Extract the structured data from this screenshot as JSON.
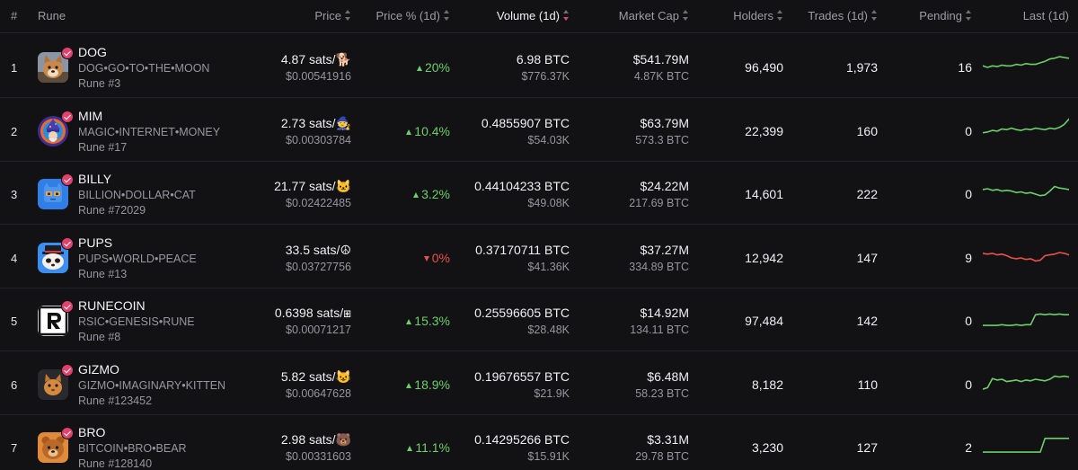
{
  "colors": {
    "background": "#121214",
    "up": "#6ccf6a",
    "down": "#e8514a",
    "accent": "#e0426d",
    "muted": "#9696a0"
  },
  "header": {
    "index": "#",
    "rune": "Rune",
    "price": "Price",
    "price_pct": "Price % (1d)",
    "volume": "Volume (1d)",
    "market_cap": "Market Cap",
    "holders": "Holders",
    "trades": "Trades (1d)",
    "pending": "Pending",
    "last": "Last (1d)",
    "sorted_column": "volume",
    "sort_direction": "desc"
  },
  "rows": [
    {
      "index": "1",
      "name": "DOG",
      "full_name": "DOG•GO•TO•THE•MOON",
      "rune_number": "Rune #3",
      "price": "4.87 sats/🐕",
      "price_usd": "$0.00541916",
      "change": "20%",
      "direction": "up",
      "volume": "6.98 BTC",
      "volume_usd": "$776.37K",
      "market_cap": "$541.79M",
      "market_cap_btc": "4.87K BTC",
      "holders": "96,490",
      "trades": "1,973",
      "pending": "16",
      "avatar_icon": "shiba-dog-icon",
      "trend": [
        22,
        20,
        22,
        21,
        23,
        22,
        22,
        24,
        23,
        25,
        24,
        24,
        26,
        28,
        31,
        32,
        34,
        33,
        32
      ]
    },
    {
      "index": "2",
      "name": "MIM",
      "full_name": "MAGIC•INTERNET•MONEY",
      "rune_number": "Rune #17",
      "price": "2.73 sats/🧙",
      "price_usd": "$0.00303784",
      "change": "10.4%",
      "direction": "up",
      "volume": "0.4855907 BTC",
      "volume_usd": "$54.03K",
      "market_cap": "$63.79M",
      "market_cap_btc": "573.3 BTC",
      "holders": "22,399",
      "trades": "160",
      "pending": "0",
      "avatar_icon": "wizard-icon",
      "trend": [
        18,
        19,
        21,
        20,
        23,
        22,
        24,
        22,
        21,
        23,
        22,
        24,
        23,
        22,
        24,
        23,
        25,
        29,
        36
      ]
    },
    {
      "index": "3",
      "name": "BILLY",
      "full_name": "BILLION•DOLLAR•CAT",
      "rune_number": "Rune #72029",
      "price": "21.77 sats/🐱",
      "price_usd": "$0.02422485",
      "change": "3.2%",
      "direction": "up",
      "volume": "0.44104233 BTC",
      "volume_usd": "$49.08K",
      "market_cap": "$24.22M",
      "market_cap_btc": "217.69 BTC",
      "holders": "14,601",
      "trades": "222",
      "pending": "0",
      "avatar_icon": "cat-icon",
      "trend": [
        26,
        27,
        25,
        26,
        24,
        25,
        24,
        22,
        23,
        21,
        22,
        20,
        18,
        19,
        24,
        30,
        28,
        27,
        26
      ]
    },
    {
      "index": "4",
      "name": "PUPS",
      "full_name": "PUPS•WORLD•PEACE",
      "rune_number": "Rune #13",
      "price": "33.5 sats/☮",
      "price_usd": "$0.03727756",
      "change": "0%",
      "direction": "down",
      "volume": "0.37170711 BTC",
      "volume_usd": "$41.36K",
      "market_cap": "$37.27M",
      "market_cap_btc": "334.89 BTC",
      "holders": "12,942",
      "trades": "147",
      "pending": "9",
      "avatar_icon": "pup-face-icon",
      "trend": [
        26,
        25,
        26,
        24,
        25,
        23,
        20,
        19,
        20,
        18,
        19,
        16,
        17,
        23,
        24,
        25,
        27,
        26,
        24
      ]
    },
    {
      "index": "5",
      "name": "RUNECOIN",
      "full_name": "RSIC•GENESIS•RUNE",
      "rune_number": "Rune #8",
      "price": "0.6398 sats/⧆",
      "price_usd": "$0.00071217",
      "change": "15.3%",
      "direction": "up",
      "volume": "0.25596605 BTC",
      "volume_usd": "$28.48K",
      "market_cap": "$14.92M",
      "market_cap_btc": "134.11 BTC",
      "holders": "97,484",
      "trades": "142",
      "pending": "0",
      "avatar_icon": "runecoin-logo-icon",
      "trend": [
        14,
        14,
        14,
        14,
        15,
        14,
        14,
        15,
        14,
        15,
        15,
        28,
        29,
        28,
        29,
        28,
        29,
        28,
        28
      ]
    },
    {
      "index": "6",
      "name": "GIZMO",
      "full_name": "GIZMO•IMAGINARY•KITTEN",
      "rune_number": "Rune #123452",
      "price": "5.82 sats/😺",
      "price_usd": "$0.00647628",
      "change": "18.9%",
      "direction": "up",
      "volume": "0.19676557 BTC",
      "volume_usd": "$21.9K",
      "market_cap": "$6.48M",
      "market_cap_btc": "58.23 BTC",
      "holders": "8,182",
      "trades": "110",
      "pending": "0",
      "avatar_icon": "kitten-icon",
      "trend": [
        14,
        16,
        28,
        26,
        27,
        24,
        25,
        26,
        24,
        26,
        25,
        27,
        26,
        25,
        27,
        31,
        30,
        31,
        30
      ]
    },
    {
      "index": "7",
      "name": "BRO",
      "full_name": "BITCOIN•BRO•BEAR",
      "rune_number": "Rune #128140",
      "price": "2.98 sats/🐻",
      "price_usd": "$0.00331603",
      "change": "11.1%",
      "direction": "up",
      "volume": "0.14295266 BTC",
      "volume_usd": "$15.91K",
      "market_cap": "$3.31M",
      "market_cap_btc": "29.78 BTC",
      "holders": "3,230",
      "trades": "127",
      "pending": "2",
      "avatar_icon": "bear-icon",
      "trend": [
        14,
        14,
        14,
        14,
        14,
        14,
        14,
        14,
        14,
        14,
        14,
        14,
        14,
        32,
        32,
        32,
        32,
        32,
        32
      ]
    }
  ]
}
